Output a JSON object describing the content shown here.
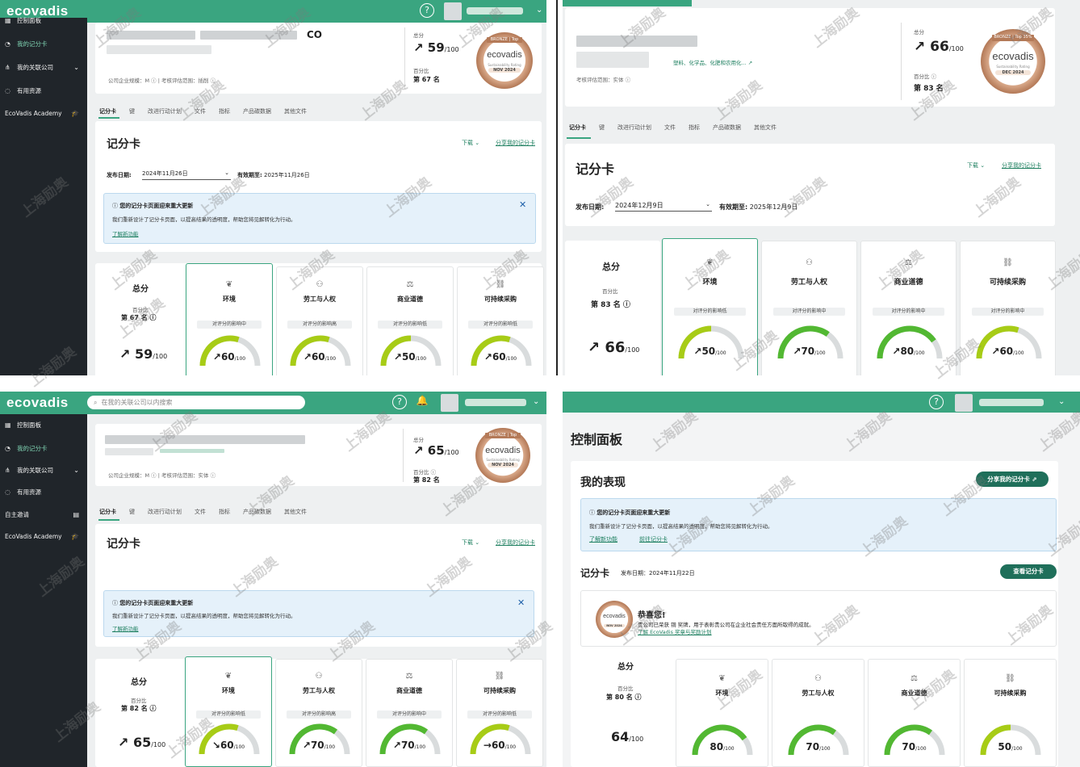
{
  "common": {
    "logo": "ecovadis",
    "help_icon": "?",
    "total_label": "总分",
    "percentile_label": "百分比",
    "out_of": "/100",
    "scorecard_title": "记分卡",
    "download": "下载",
    "share_scorecard": "分享我的记分卡",
    "publish_label": "发布日期:",
    "expire_label": "有效期至:",
    "notice_title": "您的记分卡页面迎来重大更新",
    "notice_text": "我们重新设计了记分卡页面，以提高结果的透明度，帮助您将见解转化为行动。",
    "learn_more": "了解新功能",
    "medal_bronze": "BRONZE | Top 35%",
    "medal_logo": "ecovadis",
    "medal_sub": "Sustainability Rating",
    "categories": [
      "环境",
      "劳工与人权",
      "商业道德",
      "可持续采购"
    ],
    "watermark": "上海励奥",
    "company_size_label": "公司企业规模：",
    "scope_label": "考核评估范围："
  },
  "q1": {
    "sidebar": [
      "控制面板",
      "我的记分卡",
      "我的关联公司",
      "有用资源",
      "EcoVadis Academy"
    ],
    "company_suffix": "CO",
    "company_size": "M",
    "scope": "插削",
    "total": "59",
    "rank": "第 67 名",
    "medal_date": "NOV 2024",
    "tabs": [
      "记分卡",
      "键",
      "改进行动计划",
      "文件",
      "指标",
      "产品碳数据",
      "其他文件"
    ],
    "publish_date": "2024年11月26日",
    "expire_date": "2025年11月26日",
    "cat_scores": [
      "60",
      "60",
      "50",
      "60"
    ],
    "impacts": [
      "对评分的影响中",
      "对评分的影响高",
      "对评分的影响低",
      "对评分的影响低"
    ],
    "gauge": [
      0.6,
      0.6,
      0.5,
      0.6
    ]
  },
  "q2": {
    "industry": "塑料、化学品、化肥和农用化...",
    "scope": "实体",
    "total": "66",
    "rank": "第 83 名",
    "medal_date": "DEC 2024",
    "tabs": [
      "记分卡",
      "键",
      "改进行动计划",
      "文件",
      "指标",
      "产品碳数据",
      "其他文件"
    ],
    "publish_date": "2024年12月9日",
    "expire_date": "2025年12月9日",
    "cat_scores": [
      "50",
      "70",
      "80",
      "60"
    ],
    "impacts": [
      "对评分的影响低",
      "对评分的影响中",
      "对评分的影响中",
      "对评分的影响中"
    ],
    "gauge": [
      0.5,
      0.7,
      0.8,
      0.6
    ]
  },
  "q3": {
    "search_placeholder": "在我的关联公司以内搜索",
    "sidebar": [
      "控制面板",
      "我的记分卡",
      "我的关联公司",
      "有用资源",
      "自主邀请",
      "EcoVadis Academy"
    ],
    "company_size": "M",
    "scope": "实体",
    "total": "65",
    "rank": "第 82 名",
    "medal_date": "NOV 2024",
    "tabs": [
      "记分卡",
      "键",
      "改进行动计划",
      "文件",
      "指标",
      "产品碳数据",
      "其他文件"
    ],
    "cat_scores": [
      "60",
      "70",
      "70",
      "60"
    ],
    "impacts": [
      "对评分的影响低",
      "对评分的影响高",
      "对评分的影响中",
      "对评分的影响低"
    ],
    "gauge": [
      0.6,
      0.7,
      0.7,
      0.6
    ]
  },
  "q4": {
    "page_title": "控制面板",
    "section_title": "我的表现",
    "share_btn": "分享我的记分卡",
    "goto_scorecard": "前往记分卡",
    "scorecard_label": "记分卡",
    "publish": "发布日期：2024年11月22日",
    "view_btn": "查看记分卡",
    "congrats": "恭喜您!",
    "congrats_text": "贵公司已荣获 铜 奖牌，用于表彰贵公司在企业社会责任方面所取得的成就。",
    "program_link": "了解 EcoVadis 奖章与奖励计划",
    "medal_date": "NOV 2024",
    "total": "64",
    "rank": "第 80 名",
    "cat_scores": [
      "80",
      "70",
      "70",
      "50"
    ],
    "gauge": [
      0.8,
      0.7,
      0.7,
      0.5
    ]
  }
}
